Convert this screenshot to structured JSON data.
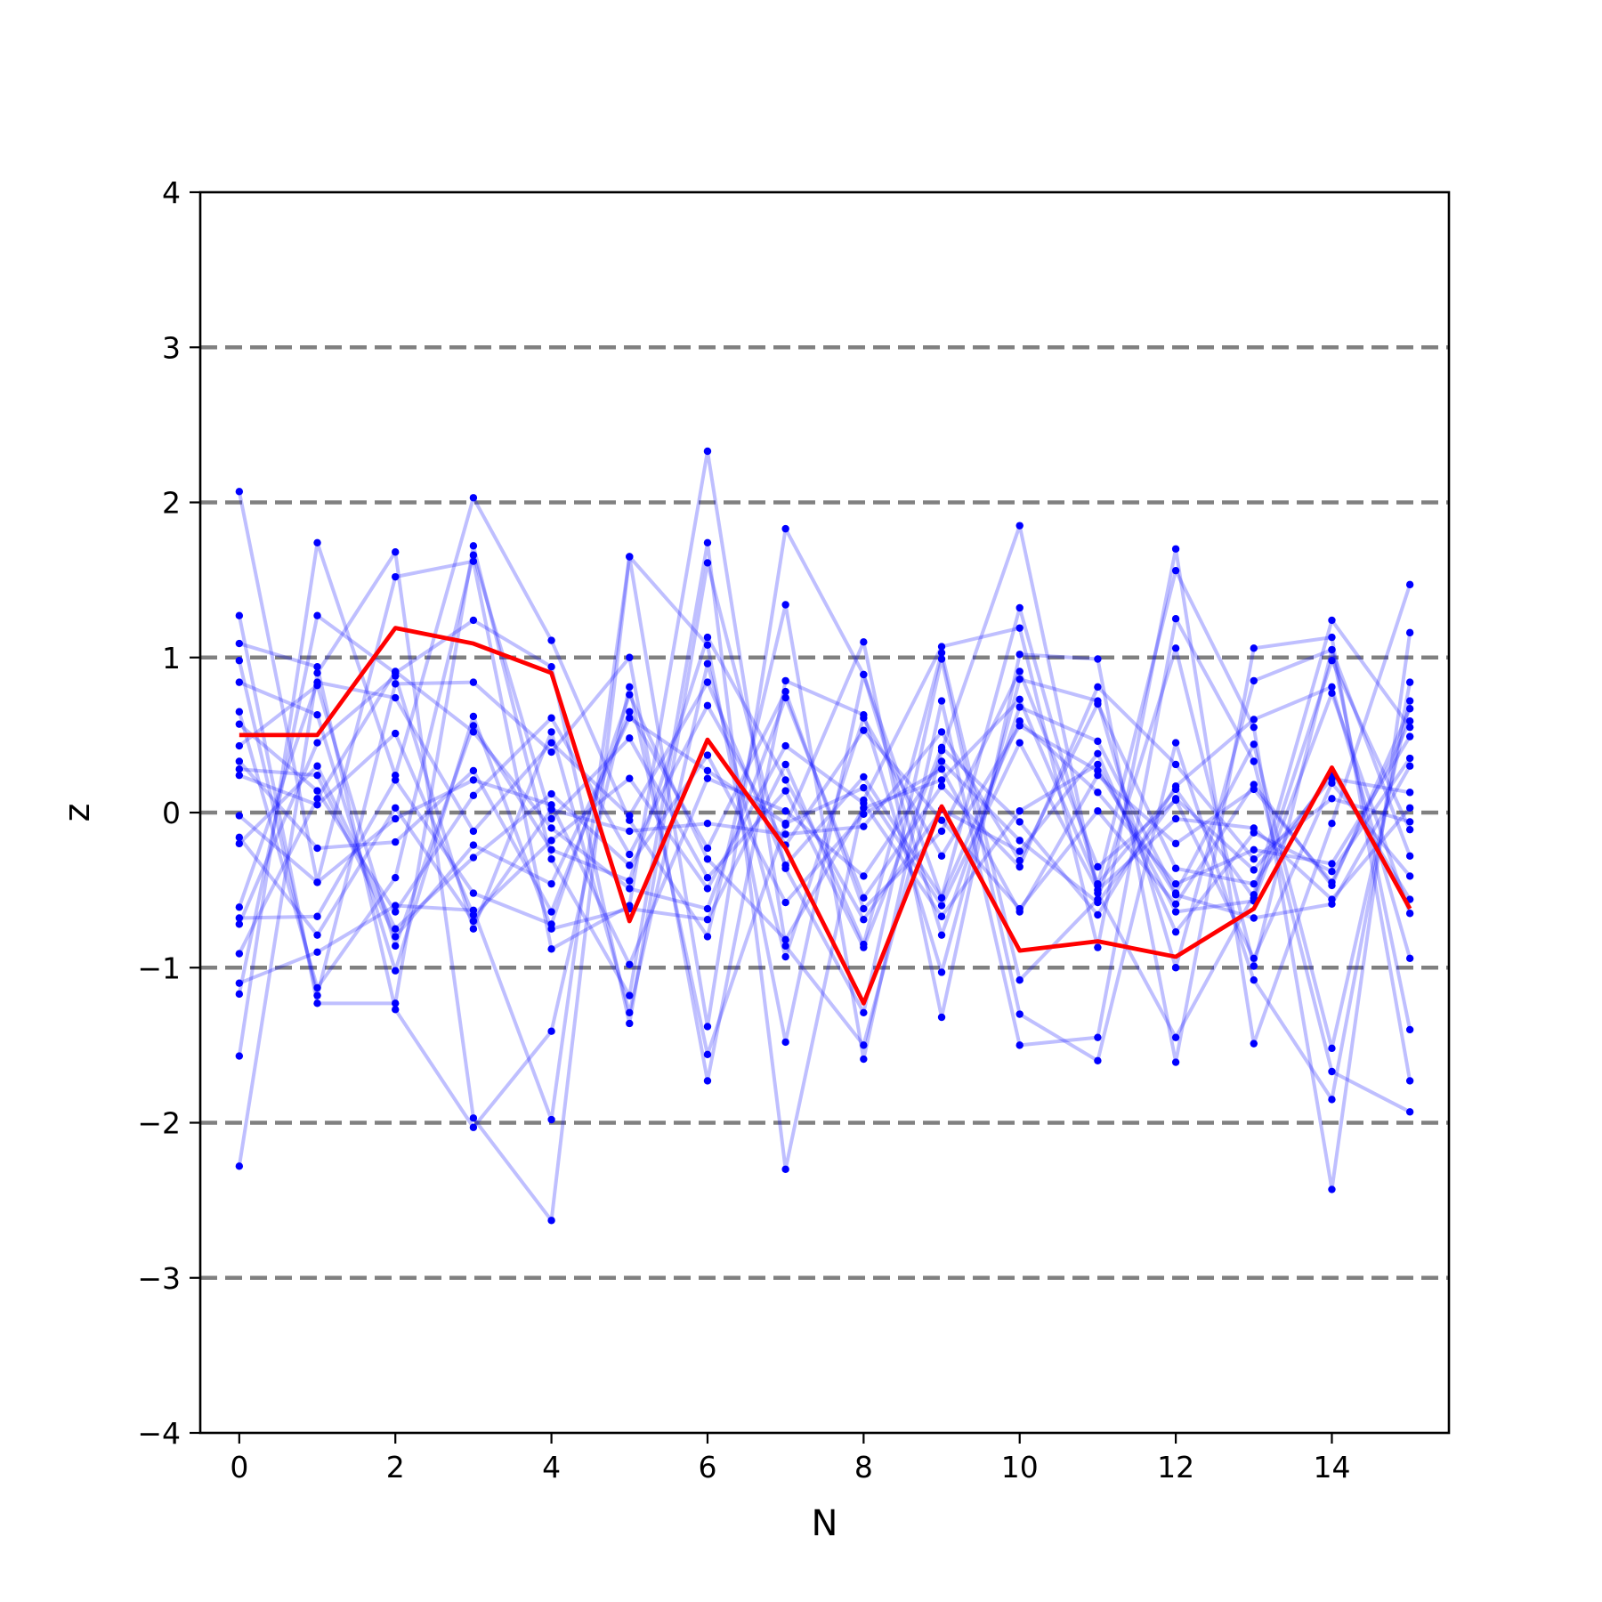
{
  "chart_data": {
    "type": "line",
    "title": "",
    "xlabel": "N",
    "ylabel": "z",
    "xlim": [
      -0.5,
      15.5
    ],
    "ylim": [
      -4,
      4
    ],
    "x_ticks": [
      0,
      2,
      4,
      6,
      8,
      10,
      12,
      14
    ],
    "y_ticks": [
      -4,
      -3,
      -2,
      -1,
      0,
      1,
      2,
      3,
      4
    ],
    "x_tick_labels": [
      "0",
      "2",
      "4",
      "6",
      "8",
      "10",
      "12",
      "14"
    ],
    "y_tick_labels": [
      "−4",
      "−3",
      "−2",
      "−1",
      "0",
      "1",
      "2",
      "3",
      "4"
    ],
    "reference_lines_y": [
      -3,
      -2,
      -1,
      0,
      1,
      2,
      3
    ],
    "reference_line_color": "#808080",
    "grid": false,
    "legend": "none",
    "x": [
      0,
      1,
      2,
      3,
      4,
      5,
      6,
      7,
      8,
      9,
      10,
      11,
      12,
      13,
      14,
      15
    ],
    "highlight_series": {
      "color": "#ff0000",
      "values": [
        0.5,
        0.5,
        1.19,
        1.09,
        0.9,
        -0.7,
        0.47,
        -0.23,
        -1.23,
        0.04,
        -0.89,
        -0.83,
        -0.93,
        -0.62,
        0.29,
        -0.62
      ]
    },
    "background_series_color": "#0000ff",
    "background_series": [
      [
        2.07,
        -0.45,
        1.52,
        1.62,
        -0.88,
        -0.6,
        2.33,
        -0.86,
        -1.5,
        0.4,
        1.85,
        -0.52,
        -1.45,
        -0.53,
        1.24,
        0.55
      ],
      [
        -2.28,
        0.9,
        1.68,
        -1.97,
        -2.63,
        1.65,
        -1.38,
        1.83,
        0.89,
        -0.55,
        1.32,
        -0.47,
        1.56,
        0.55,
        -2.43,
        1.16
      ],
      [
        1.27,
        -1.23,
        -1.23,
        1.72,
        -0.3,
        -1.18,
        1.74,
        -2.3,
        0.08,
        1.07,
        1.19,
        -0.87,
        1.7,
        -1.49,
        -0.07,
        1.47
      ],
      [
        -1.57,
        1.74,
        0.24,
        2.03,
        1.11,
        -0.05,
        -0.8,
        1.34,
        -1.59,
        0.72,
        -1.5,
        -1.45,
        1.25,
        0.33,
        -1.67,
        -1.93
      ],
      [
        1.09,
        0.94,
        -1.27,
        -2.03,
        -1.41,
        0.81,
        -1.56,
        -0.08,
        1.1,
        -1.32,
        1.02,
        0.99,
        -1.61,
        1.06,
        1.13,
        -1.73
      ],
      [
        -1.17,
        1.27,
        0.9,
        1.24,
        0.94,
        -1.36,
        1.61,
        -0.36,
        -1.29,
        0.99,
        -1.3,
        -1.6,
        0.45,
        -1.08,
        -1.85,
        0.84
      ],
      [
        0.98,
        -1.18,
        0.83,
        0.84,
        0.39,
        1.0,
        -1.73,
        0.85,
        0.63,
        -1.03,
        0.86,
        0.72,
        -1.0,
        0.85,
        1.05,
        -1.4
      ],
      [
        -1.1,
        -0.9,
        -0.6,
        -0.63,
        -1.98,
        1.65,
        1.08,
        -1.48,
        0.89,
        -0.79,
        0.68,
        0.46,
        -0.52,
        0.44,
        -1.52,
        0.72
      ],
      [
        0.84,
        0.63,
        -1.02,
        0.62,
        -0.75,
        -0.62,
        -0.69,
        0.31,
        -0.85,
        1.03,
        -1.08,
        -0.56,
        1.06,
        -0.99,
        1.05,
        -0.28
      ],
      [
        -0.72,
        0.45,
        0.88,
        -0.75,
        0.52,
        -1.29,
        0.96,
        -0.93,
        0.61,
        -0.28,
        0.56,
        0.27,
        -0.53,
        -0.68,
        -0.59,
        0.3
      ],
      [
        0.65,
        -1.13,
        -0.42,
        1.66,
        -0.04,
        0.48,
        -0.42,
        0.14,
        -0.87,
        0.42,
        -0.06,
        -0.66,
        0.17,
        0.6,
        0.81,
        -0.94
      ],
      [
        -0.61,
        0.84,
        0.74,
        -0.12,
        0.45,
        -0.02,
        0.84,
        -0.34,
        0.23,
        -0.55,
        0.59,
        0.13,
        -0.46,
        -0.24,
        -0.33,
        0.49
      ],
      [
        0.33,
        -0.23,
        -0.19,
        0.27,
        -0.64,
        0.65,
        -0.23,
        0.78,
        -0.62,
        -0.12,
        0.91,
        -0.35,
        0.08,
        -0.94,
        0.19,
        -0.41
      ],
      [
        -0.2,
        0.3,
        -0.75,
        -0.29,
        0.12,
        -0.34,
        0.37,
        -0.58,
        -0.01,
        0.28,
        -0.64,
        0.24,
        -0.2,
        0.15,
        -0.45,
        0.59
      ],
      [
        0.24,
        0.05,
        0.51,
        -0.66,
        -0.18,
        0.22,
        -0.49,
        0.43,
        0.06,
        -0.67,
        0.01,
        0.31,
        -0.64,
        -0.57,
        0.77,
        -0.65
      ],
      [
        -0.02,
        -0.45,
        -0.04,
        0.21,
        0.05,
        -0.98,
        0.22,
        0.01,
        -0.41,
        0.33,
        -0.18,
        -0.58,
        0.09,
        -0.37,
        0.22,
        0.13
      ],
      [
        0.57,
        0.14,
        -0.64,
        0.11,
        0.61,
        -0.27,
        0.69,
        -0.21,
        0.53,
        -0.05,
        -0.62,
        0.01,
        -0.59,
        0.18,
        -0.47,
        0.67
      ],
      [
        -0.68,
        -0.67,
        0.21,
        -0.52,
        -0.72,
        0.76,
        -0.3,
        -0.82,
        0.03,
        0.21,
        0.73,
        -0.46,
        0.15,
        -0.55,
        0.98,
        -0.11
      ],
      [
        0.43,
        0.82,
        -0.86,
        0.56,
        -0.24,
        -0.44,
        1.13,
        0.21,
        -0.69,
        0.02,
        -0.25,
        0.38,
        -0.77,
        -0.13,
        -0.38,
        0.35
      ],
      [
        -0.16,
        -0.79,
        0.03,
        -0.7,
        0.02,
        -0.12,
        -0.07,
        -0.14,
        -0.09,
        0.52,
        -0.31,
        0.7,
        -0.36,
        -0.46,
        0.26,
        -0.56
      ],
      [
        0.28,
        0.24,
        -0.8,
        -0.21,
        -0.46,
        0.61,
        0.27,
        -0.07,
        0.16,
        -0.6,
        0.45,
        -0.5,
        -0.04,
        -0.1,
        -0.56,
        0.03
      ],
      [
        -0.91,
        0.09,
        0.91,
        0.52,
        -0.1,
        -0.49,
        -0.62,
        0.74,
        -0.55,
        0.17,
        -0.35,
        0.81,
        0.31,
        -0.3,
        0.09,
        -0.06
      ]
    ]
  }
}
